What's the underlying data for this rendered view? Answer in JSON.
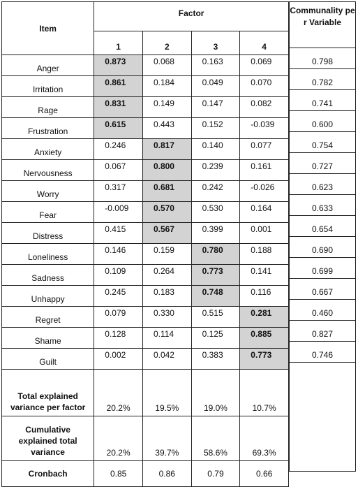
{
  "header": {
    "item": "Item",
    "factor": "Factor",
    "factor_numbers": [
      "1",
      "2",
      "3",
      "4"
    ],
    "communality": "Communality per Variable"
  },
  "rows": [
    {
      "item": "Anger",
      "values": [
        "0.873",
        "0.068",
        "0.163",
        "0.069"
      ],
      "highlight": 0,
      "communality": "0.798"
    },
    {
      "item": "Irritation",
      "values": [
        "0.861",
        "0.184",
        "0.049",
        "0.070"
      ],
      "highlight": 0,
      "communality": "0.782"
    },
    {
      "item": "Rage",
      "values": [
        "0.831",
        "0.149",
        "0.147",
        "0.082"
      ],
      "highlight": 0,
      "communality": "0.741"
    },
    {
      "item": "Frustration",
      "values": [
        "0.615",
        "0.443",
        "0.152",
        "-0.039"
      ],
      "highlight": 0,
      "communality": "0.600"
    },
    {
      "item": "Anxiety",
      "values": [
        "0.246",
        "0.817",
        "0.140",
        "0.077"
      ],
      "highlight": 1,
      "communality": "0.754"
    },
    {
      "item": "Nervousness",
      "values": [
        "0.067",
        "0.800",
        "0.239",
        "0.161"
      ],
      "highlight": 1,
      "communality": "0.727"
    },
    {
      "item": "Worry",
      "values": [
        "0.317",
        "0.681",
        "0.242",
        "-0.026"
      ],
      "highlight": 1,
      "communality": "0.623"
    },
    {
      "item": "Fear",
      "values": [
        "-0.009",
        "0.570",
        "0.530",
        "0.164"
      ],
      "highlight": 1,
      "communality": "0.633"
    },
    {
      "item": "Distress",
      "values": [
        "0.415",
        "0.567",
        "0.399",
        "0.001"
      ],
      "highlight": 1,
      "communality": "0.654"
    },
    {
      "item": "Loneliness",
      "values": [
        "0.146",
        "0.159",
        "0.780",
        "0.188"
      ],
      "highlight": 2,
      "communality": "0.690"
    },
    {
      "item": "Sadness",
      "values": [
        "0.109",
        "0.264",
        "0.773",
        "0.141"
      ],
      "highlight": 2,
      "communality": "0.699"
    },
    {
      "item": "Unhappy",
      "values": [
        "0.245",
        "0.183",
        "0.748",
        "0.116"
      ],
      "highlight": 2,
      "communality": "0.667"
    },
    {
      "item": "Regret",
      "values": [
        "0.079",
        "0.330",
        "0.515",
        "0.281"
      ],
      "highlight": 3,
      "communality": "0.460"
    },
    {
      "item": "Shame",
      "values": [
        "0.128",
        "0.114",
        "0.125",
        "0.885"
      ],
      "highlight": 3,
      "communality": "0.827"
    },
    {
      "item": "Guilt",
      "values": [
        "0.002",
        "0.042",
        "0.383",
        "0.773"
      ],
      "highlight": 3,
      "communality": "0.746"
    }
  ],
  "summary": [
    {
      "label": "Total explained variance per factor",
      "values": [
        "20.2%",
        "19.5%",
        "19.0%",
        "10.7%"
      ]
    },
    {
      "label": "Cumulative explained total variance",
      "values": [
        "20.2%",
        "39.7%",
        "58.6%",
        "69.3%"
      ]
    }
  ],
  "cronbach": {
    "label": "Cronbach",
    "values": [
      "0.85",
      "0.86",
      "0.79",
      "0.66"
    ]
  },
  "colors": {
    "highlight": "#d3d3d3",
    "border": "#222222"
  }
}
